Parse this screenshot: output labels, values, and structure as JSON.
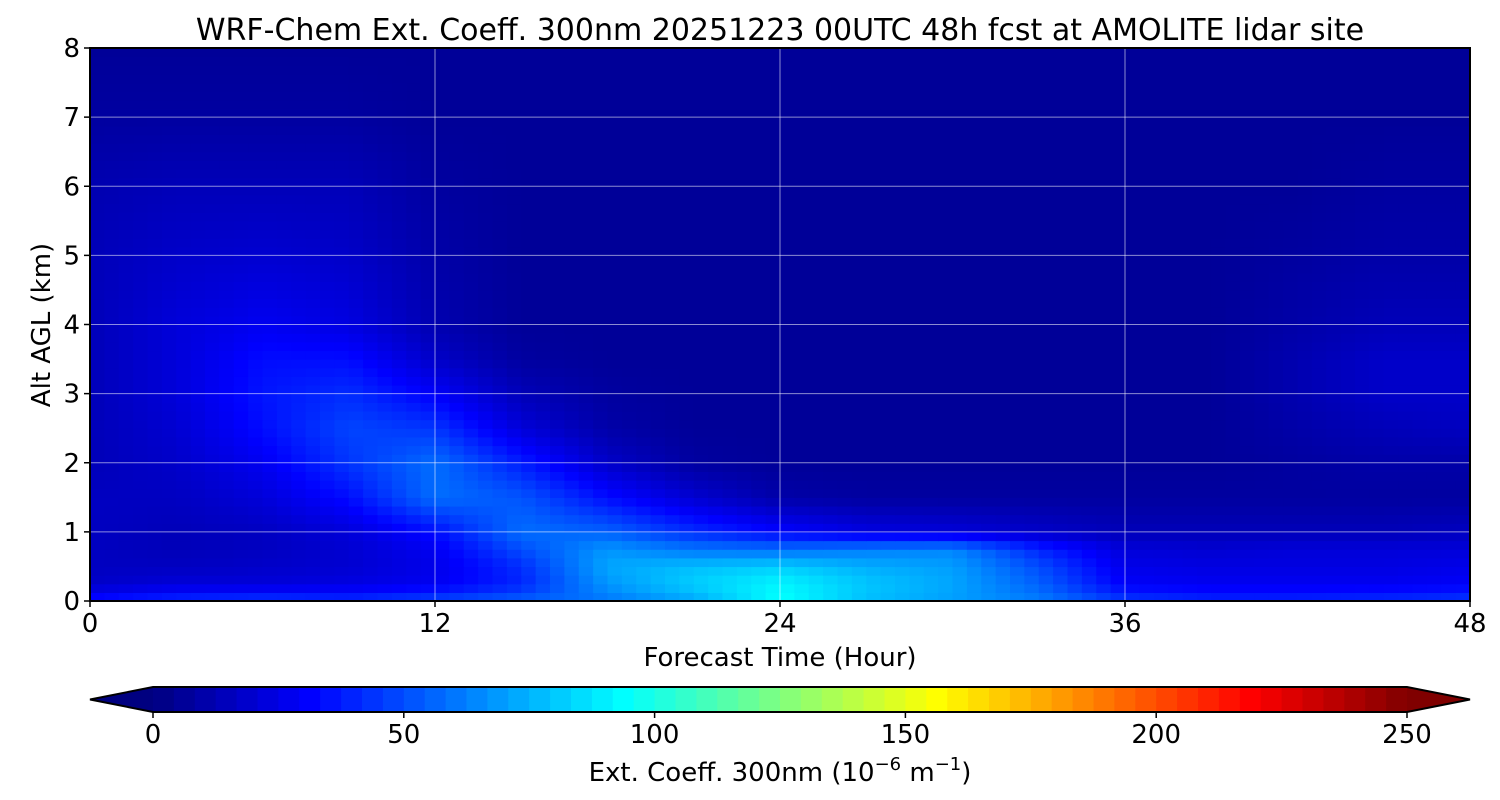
{
  "chart_data": {
    "type": "heatmap",
    "title": "WRF-Chem Ext. Coeff. 300nm  20251223 00UTC 48h fcst at AMOLITE lidar site",
    "xlabel": "Forecast Time (Hour)",
    "ylabel": "Alt AGL (km)",
    "xlim": [
      0,
      48
    ],
    "ylim": [
      0,
      8
    ],
    "xticks": [
      0,
      12,
      24,
      36,
      48
    ],
    "yticks": [
      0,
      1,
      2,
      3,
      4,
      5,
      6,
      7,
      8
    ],
    "grid": true,
    "colormap": "jet",
    "x_hours": [
      0,
      3,
      6,
      9,
      12,
      15,
      18,
      21,
      24,
      27,
      30,
      33,
      36,
      39,
      42,
      45,
      48
    ],
    "y_km": [
      0,
      0.25,
      0.5,
      0.75,
      1,
      1.5,
      2,
      2.5,
      3,
      3.5,
      4,
      5,
      6,
      7,
      8
    ],
    "z": [
      [
        35,
        42,
        45,
        42,
        48,
        55,
        60,
        72,
        95,
        78,
        70,
        62,
        45,
        40,
        40,
        42,
        45
      ],
      [
        18,
        22,
        22,
        24,
        28,
        40,
        68,
        82,
        92,
        80,
        72,
        55,
        30,
        28,
        28,
        28,
        30
      ],
      [
        16,
        16,
        18,
        20,
        26,
        42,
        72,
        78,
        82,
        74,
        70,
        50,
        26,
        24,
        24,
        24,
        26
      ],
      [
        16,
        14,
        16,
        20,
        28,
        50,
        68,
        60,
        58,
        62,
        64,
        40,
        22,
        20,
        22,
        22,
        22
      ],
      [
        16,
        14,
        16,
        22,
        34,
        58,
        55,
        42,
        32,
        24,
        22,
        18,
        14,
        14,
        14,
        14,
        16
      ],
      [
        16,
        16,
        22,
        34,
        58,
        52,
        34,
        20,
        10,
        8,
        8,
        8,
        8,
        8,
        8,
        8,
        8
      ],
      [
        14,
        18,
        28,
        44,
        58,
        38,
        18,
        8,
        6,
        6,
        6,
        6,
        6,
        6,
        8,
        10,
        10
      ],
      [
        14,
        20,
        34,
        48,
        44,
        22,
        10,
        6,
        6,
        6,
        6,
        6,
        6,
        6,
        10,
        14,
        16
      ],
      [
        14,
        22,
        36,
        42,
        30,
        14,
        8,
        6,
        6,
        6,
        6,
        6,
        6,
        6,
        12,
        18,
        18
      ],
      [
        14,
        22,
        34,
        34,
        18,
        8,
        6,
        6,
        6,
        6,
        6,
        6,
        6,
        6,
        12,
        18,
        18
      ],
      [
        14,
        22,
        28,
        24,
        12,
        6,
        6,
        6,
        6,
        6,
        6,
        6,
        6,
        6,
        10,
        14,
        14
      ],
      [
        14,
        18,
        20,
        18,
        10,
        6,
        6,
        6,
        6,
        6,
        6,
        6,
        6,
        6,
        8,
        10,
        10
      ],
      [
        12,
        14,
        14,
        14,
        8,
        6,
        6,
        6,
        6,
        6,
        6,
        6,
        6,
        6,
        6,
        8,
        8
      ],
      [
        8,
        8,
        8,
        8,
        6,
        6,
        6,
        6,
        6,
        6,
        6,
        6,
        6,
        6,
        6,
        6,
        6
      ],
      [
        6,
        6,
        6,
        6,
        6,
        6,
        6,
        6,
        6,
        6,
        6,
        6,
        6,
        6,
        6,
        6,
        6
      ]
    ],
    "colorbar": {
      "label_main": "Ext. Coeff. 300nm  (10",
      "label_exp1": "−6",
      "label_mid": " m",
      "label_exp2": "−1",
      "label_end": ")",
      "vmin": 0,
      "vmax": 250,
      "ticks": [
        0,
        50,
        100,
        150,
        200,
        250
      ],
      "extend": "both"
    }
  }
}
